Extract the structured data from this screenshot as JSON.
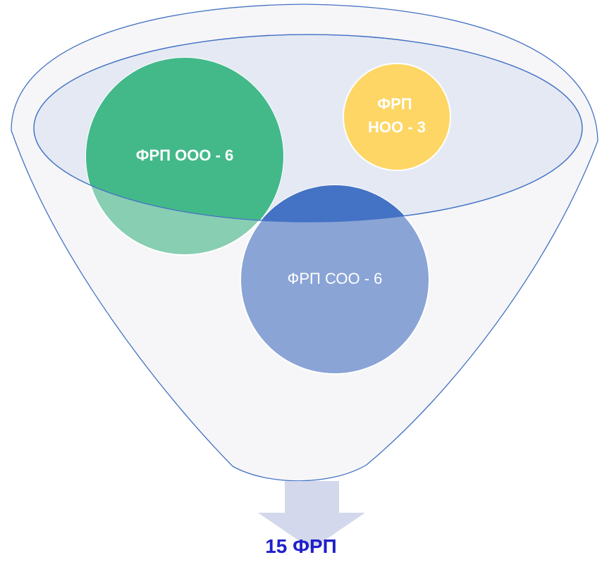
{
  "diagram": {
    "type": "funnel",
    "circles": [
      {
        "id": "ooo",
        "label": "ФРП ООО - 6",
        "lines": [
          "ФРП ООО - 6"
        ],
        "value": 6,
        "color": "#43b98a"
      },
      {
        "id": "noo",
        "label": "ФРП НОО - 3",
        "lines": [
          "ФРП",
          "НОО - 3"
        ],
        "value": 3,
        "color": "#fdd665"
      },
      {
        "id": "soo",
        "label": "ФРП СОО - 6",
        "lines": [
          "ФРП СОО - 6"
        ],
        "value": 6,
        "color": "#8aa4d6"
      }
    ],
    "result": {
      "label": "15 ФРП",
      "color": "#1f20c9"
    },
    "colors": {
      "funnel_outline": "#4472c4",
      "funnel_fill": "#f6f6f8",
      "rim_fill": "#e4e9f4",
      "arrow": "#d3d8ec"
    }
  }
}
